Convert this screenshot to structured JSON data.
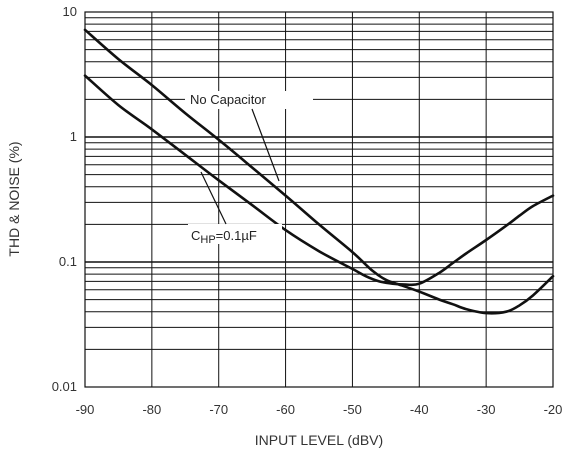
{
  "chart_data": {
    "type": "line",
    "xlabel": "INPUT LEVEL  (dBV)",
    "ylabel": "THD & NOISE (%)",
    "xlim": [
      -90,
      -20
    ],
    "ylim": [
      0.01,
      10
    ],
    "yscale": "log",
    "grid": true,
    "x_ticks": [
      "-90",
      "-80",
      "-70",
      "-60",
      "-50",
      "-40",
      "-30",
      "-20"
    ],
    "y_ticks": [
      "0.01",
      "0.1",
      "1",
      "10"
    ],
    "annotations": {
      "no_cap": "No Capacitor",
      "chp_main": "C",
      "chp_sub": "HP",
      "chp_rest": "=0.1µF"
    },
    "colors": {
      "line": "#111111",
      "grid": "#111111"
    },
    "series": [
      {
        "label_key": "no_cap",
        "x": [
          -90,
          -85,
          -80,
          -75,
          -70,
          -65,
          -60,
          -55,
          -50,
          -47,
          -45,
          -43,
          -40,
          -37,
          -35,
          -33,
          -30,
          -27,
          -25,
          -23,
          -20
        ],
        "y": [
          7.2,
          4.2,
          2.6,
          1.55,
          0.95,
          0.57,
          0.34,
          0.2,
          0.12,
          0.085,
          0.072,
          0.066,
          0.058,
          0.05,
          0.046,
          0.042,
          0.039,
          0.04,
          0.045,
          0.054,
          0.077
        ]
      },
      {
        "label_key": "chp",
        "x": [
          -90,
          -85,
          -80,
          -75,
          -70,
          -65,
          -60,
          -55,
          -50,
          -48,
          -46,
          -44,
          -42,
          -40,
          -37,
          -35,
          -33,
          -30,
          -27,
          -25,
          -23,
          -20
        ],
        "y": [
          3.1,
          1.8,
          1.15,
          0.72,
          0.45,
          0.285,
          0.18,
          0.122,
          0.088,
          0.077,
          0.07,
          0.067,
          0.066,
          0.067,
          0.082,
          0.098,
          0.117,
          0.15,
          0.195,
          0.235,
          0.28,
          0.34
        ]
      }
    ]
  }
}
